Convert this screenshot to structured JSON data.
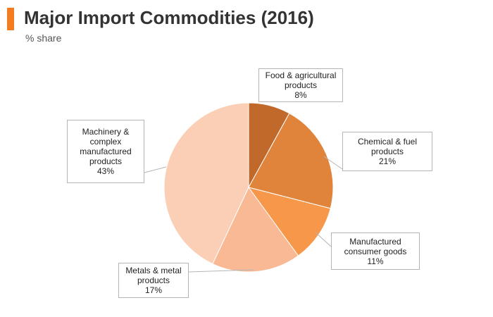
{
  "header": {
    "title": "Major Import Commodities (2016)",
    "subtitle": "% share",
    "accent_color": "#f47b20"
  },
  "chart_data": {
    "type": "pie",
    "title": "Major Import Commodities (2016)",
    "subtitle": "% share",
    "start_direction": "top (12 o'clock), clockwise",
    "slices": [
      {
        "id": "food",
        "label_lines": [
          "Food & agricultural",
          "products"
        ],
        "value_label": "8%",
        "value": 8,
        "color": "#c0692b"
      },
      {
        "id": "chemical",
        "label_lines": [
          "Chemical & fuel",
          "products"
        ],
        "value_label": "21%",
        "value": 21,
        "color": "#e0843c"
      },
      {
        "id": "consumer",
        "label_lines": [
          "Manufactured",
          "consumer goods"
        ],
        "value_label": "11%",
        "value": 11,
        "color": "#f7974a"
      },
      {
        "id": "metals",
        "label_lines": [
          "Metals & metal",
          "products"
        ],
        "value_label": "17%",
        "value": 17,
        "color": "#f8b994"
      },
      {
        "id": "machinery",
        "label_lines": [
          "Machinery &",
          "complex",
          "manufactured",
          "products"
        ],
        "value_label": "43%",
        "value": 43,
        "color": "#fbcfb5"
      }
    ]
  }
}
